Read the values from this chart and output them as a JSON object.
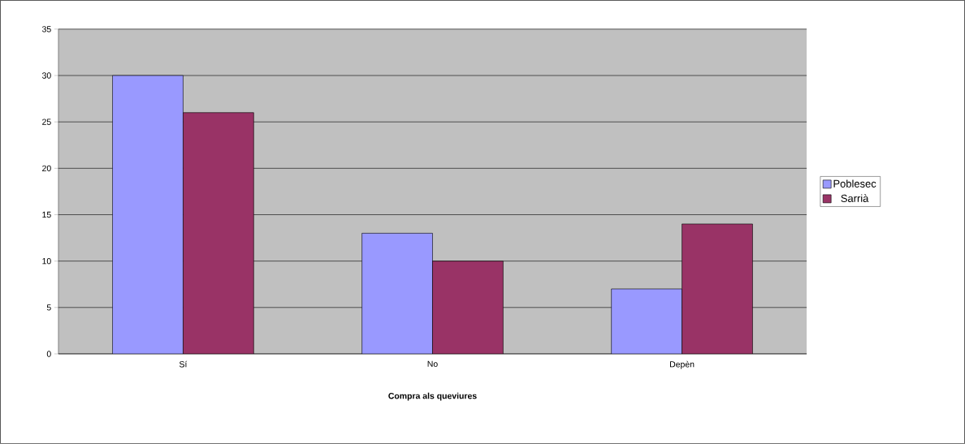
{
  "chart_data": {
    "type": "bar",
    "xlabel": "**Compra als queviures**",
    "categories": [
      "Sí",
      "No",
      "Depèn"
    ],
    "series": [
      {
        "name": "Poblesec",
        "color": "#9999ff",
        "values": [
          30,
          13,
          7
        ]
      },
      {
        "name": "Sarrià",
        "color": "#993366",
        "values": [
          26,
          10,
          14
        ]
      }
    ],
    "ylim": [
      0,
      35
    ],
    "yticks": [
      0,
      5,
      10,
      15,
      20,
      25,
      30,
      35
    ],
    "grid": "y",
    "legend": "right"
  }
}
